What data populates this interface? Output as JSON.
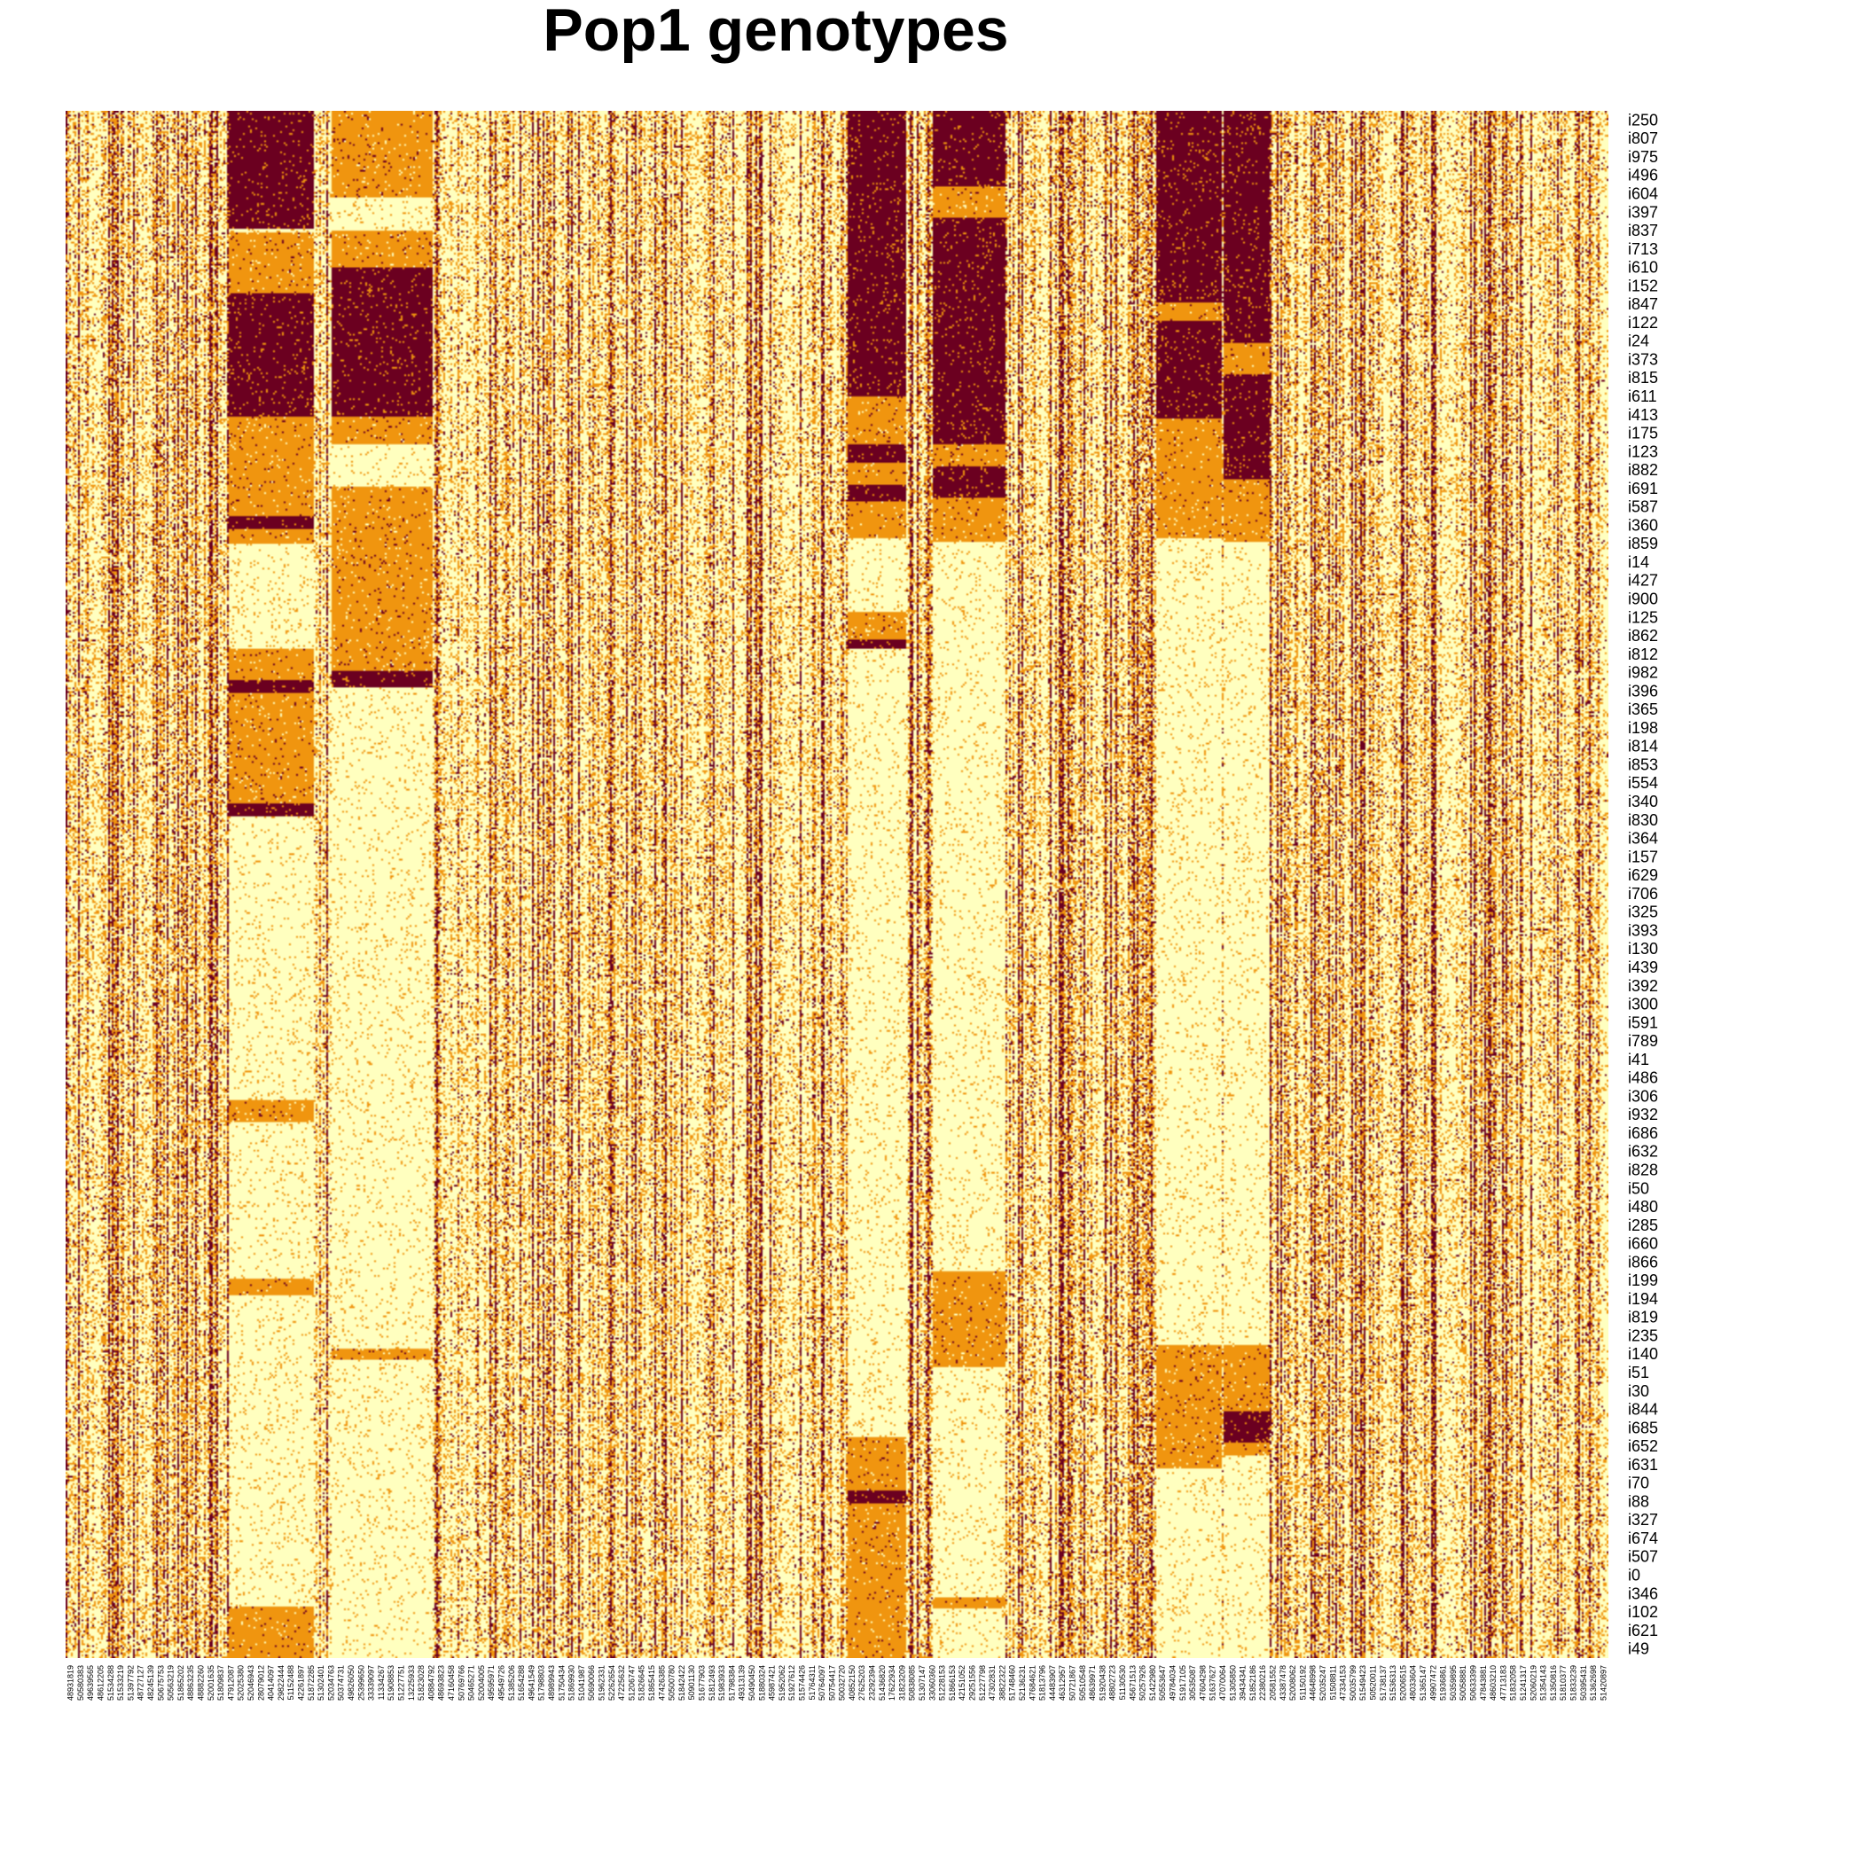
{
  "chart_data": {
    "type": "heatmap",
    "title": "Pop1 genotypes",
    "xlabel": "",
    "ylabel": "",
    "legend": "none",
    "grid": false,
    "value_range": [
      0,
      2
    ],
    "color_scale": [
      "#ffffbf",
      "#f0950f",
      "#6b0020"
    ],
    "row_labels": [
      "i250",
      "i807",
      "i975",
      "i496",
      "i604",
      "i397",
      "i837",
      "i713",
      "i610",
      "i152",
      "i847",
      "i122",
      "i24",
      "i373",
      "i815",
      "i611",
      "i413",
      "i175",
      "i123",
      "i882",
      "i691",
      "i587",
      "i360",
      "i859",
      "i14",
      "i427",
      "i900",
      "i125",
      "i862",
      "i812",
      "i982",
      "i396",
      "i365",
      "i198",
      "i814",
      "i853",
      "i554",
      "i340",
      "i830",
      "i364",
      "i157",
      "i629",
      "i706",
      "i325",
      "i393",
      "i130",
      "i439",
      "i392",
      "i300",
      "i591",
      "i789",
      "i41",
      "i486",
      "i306",
      "i932",
      "i686",
      "i632",
      "i828",
      "i50",
      "i480",
      "i285",
      "i660",
      "i866",
      "i199",
      "i194",
      "i819",
      "i235",
      "i140",
      "i51",
      "i30",
      "i844",
      "i685",
      "i652",
      "i631",
      "i70",
      "i88",
      "i327",
      "i674",
      "i507",
      "i0",
      "i346",
      "i102",
      "i621",
      "i49"
    ],
    "column_labels": [
      "48931819",
      "50580383",
      "49639565",
      "48612205",
      "51534288",
      "51533219",
      "51397792",
      "48727127",
      "48245139",
      "50675753",
      "50563219",
      "51865202",
      "48863235",
      "48882260",
      "52001635",
      "51809837",
      "47912087",
      "52025380",
      "52046943",
      "28079012",
      "40414097",
      "29822444",
      "51152488",
      "42261897",
      "51872285",
      "51302401",
      "52034763",
      "50374731",
      "49826050",
      "25399650",
      "33339097",
      "11334267",
      "51908853",
      "51227751",
      "13225933",
      "51823028",
      "40884792",
      "48693823",
      "47160458",
      "50769766",
      "50465271",
      "52004005",
      "49595971",
      "49549726",
      "51385206",
      "51654288",
      "49641549",
      "51798803",
      "48989943",
      "51750434",
      "51869930",
      "51041987",
      "50690066",
      "51962331",
      "52262654",
      "47225632",
      "51206747",
      "51826645",
      "51865415",
      "47426385",
      "50500780",
      "51842422",
      "50901130",
      "51677903",
      "51812493",
      "51983933",
      "51798384",
      "49313139",
      "50490450",
      "51880324",
      "45987421",
      "51952062",
      "51927612",
      "51574426",
      "51764311",
      "50764097",
      "50754417",
      "50032720",
      "40852150",
      "27625203",
      "23292394",
      "51436820",
      "17622934",
      "31823209",
      "50838085",
      "51307147",
      "33060360",
      "51228153",
      "51866153",
      "42151052",
      "29251556",
      "51227798",
      "47302831",
      "38822322",
      "51748460",
      "52136231",
      "47684621",
      "51813796",
      "44483907",
      "46312957",
      "50721867",
      "50510548",
      "48639971",
      "51920438",
      "48802723",
      "51130530",
      "45671513",
      "50257926",
      "51422980",
      "50553647",
      "49784034",
      "51917105",
      "30535087",
      "47604298",
      "51637627",
      "47070064",
      "51305850",
      "39434341",
      "51852186",
      "22380216",
      "20581552",
      "43387478",
      "52008062",
      "51150192",
      "44648998",
      "52035247",
      "51508811",
      "47334153",
      "50035799",
      "51549423",
      "50520011",
      "51738137",
      "51536313",
      "52006515",
      "48033604",
      "51365147",
      "49907472",
      "51936861",
      "50359895",
      "50058881",
      "50633399",
      "47843881",
      "48603210",
      "47713183",
      "51832058",
      "51241317",
      "52060219",
      "51354143",
      "51350816",
      "51810377",
      "51833239",
      "50395431",
      "51362698",
      "51420897"
    ]
  }
}
